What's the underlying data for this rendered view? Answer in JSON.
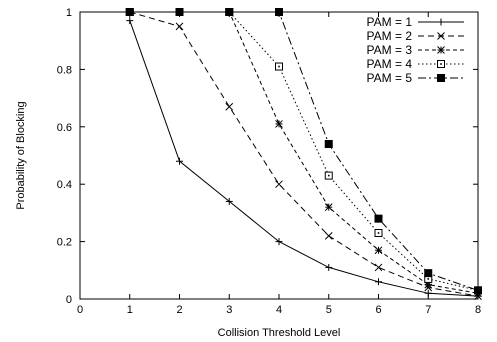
{
  "chart_data": {
    "type": "line",
    "xlabel": "Collision Threshold Level",
    "ylabel": "Probability of Blocking",
    "xlim": [
      0,
      8
    ],
    "ylim": [
      0,
      1
    ],
    "xticks": [
      "0",
      "1",
      "2",
      "3",
      "4",
      "5",
      "6",
      "7",
      "8"
    ],
    "yticks": [
      "0",
      "0.2",
      "0.4",
      "0.6",
      "0.8",
      "1"
    ],
    "grid": false,
    "legend": "top-right",
    "series": [
      {
        "name": "PAM = 1",
        "marker": "plus",
        "dash": "solid",
        "x": [
          1,
          2,
          3,
          4,
          5,
          6,
          7,
          8
        ],
        "y": [
          0.97,
          0.48,
          0.34,
          0.2,
          0.11,
          0.06,
          0.02,
          0.01
        ]
      },
      {
        "name": "PAM = 2",
        "marker": "cross",
        "dash": "dashed",
        "x": [
          1,
          2,
          3,
          4,
          5,
          6,
          7,
          8
        ],
        "y": [
          1.0,
          0.95,
          0.67,
          0.4,
          0.22,
          0.11,
          0.04,
          0.01
        ]
      },
      {
        "name": "PAM = 3",
        "marker": "star",
        "dash": "short-dashed",
        "x": [
          1,
          2,
          3,
          4,
          5,
          6,
          7,
          8
        ],
        "y": [
          1.0,
          1.0,
          1.0,
          0.61,
          0.32,
          0.17,
          0.05,
          0.02
        ]
      },
      {
        "name": "PAM = 4",
        "marker": "open-square",
        "dash": "dotted",
        "x": [
          1,
          2,
          3,
          4,
          5,
          6,
          7,
          8
        ],
        "y": [
          1.0,
          1.0,
          1.0,
          0.81,
          0.43,
          0.23,
          0.07,
          0.03
        ]
      },
      {
        "name": "PAM = 5",
        "marker": "filled-square",
        "dash": "dash-dot",
        "x": [
          1,
          2,
          3,
          4,
          5,
          6,
          7,
          8
        ],
        "y": [
          1.0,
          1.0,
          1.0,
          1.0,
          0.54,
          0.28,
          0.09,
          0.03
        ]
      }
    ]
  }
}
